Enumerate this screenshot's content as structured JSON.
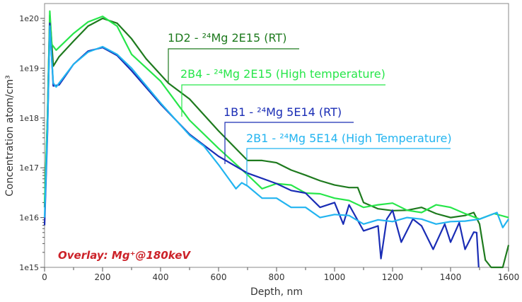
{
  "chart_data": {
    "type": "line",
    "title": "",
    "xlabel": "Depth, nm",
    "ylabel": "Concentration atom/cm³",
    "xlim": [
      0,
      1600
    ],
    "ylim": [
      1000000000000000.0,
      1e+20
    ],
    "yscale": "log",
    "grid": false,
    "x_ticks": [
      "0",
      "200",
      "400",
      "600",
      "800",
      "1000",
      "1200",
      "1400",
      "1600"
    ],
    "y_ticks": [
      "1e15",
      "1e16",
      "1e17",
      "1e18",
      "1e19",
      "1e20"
    ],
    "annotation": "Overlay: Mg⁺@180keV",
    "annotation_color": "#cc2229",
    "series": [
      {
        "name": "1D2 - ²⁴Mg 2E15 (RT)",
        "color": "#1e7a1e",
        "points": [
          [
            0,
            1.6e+16
          ],
          [
            10,
            1e+18
          ],
          [
            18,
            1.15e+20
          ],
          [
            30,
            1.1e+19
          ],
          [
            50,
            1.7e+19
          ],
          [
            100,
            3.5e+19
          ],
          [
            150,
            7e+19
          ],
          [
            200,
            1e+20
          ],
          [
            250,
            8e+19
          ],
          [
            300,
            3.9e+19
          ],
          [
            350,
            1.55e+19
          ],
          [
            427,
            5e+18
          ],
          [
            500,
            2.4e+18
          ],
          [
            600,
            5.5e+17
          ],
          [
            700,
            1.4e+17
          ],
          [
            750,
            1.4e+17
          ],
          [
            800,
            1.26e+17
          ],
          [
            850,
            9e+16
          ],
          [
            900,
            7.1e+16
          ],
          [
            950,
            5.5e+16
          ],
          [
            1000,
            4.5e+16
          ],
          [
            1050,
            4e+16
          ],
          [
            1080,
            4e+16
          ],
          [
            1100,
            2e+16
          ],
          [
            1150,
            1.5e+16
          ],
          [
            1200,
            1.38e+16
          ],
          [
            1250,
            1.4e+16
          ],
          [
            1300,
            1.6e+16
          ],
          [
            1350,
            1.2e+16
          ],
          [
            1400,
            1e+16
          ],
          [
            1450,
            1.1e+16
          ],
          [
            1480,
            1.26e+16
          ],
          [
            1500,
            7400000000000000.0
          ],
          [
            1520,
            1400000000000000.0
          ],
          [
            1540,
            1000000000000000.0
          ],
          [
            1580,
            1000000000000000.0
          ],
          [
            1600,
            2800000000000000.0
          ]
        ]
      },
      {
        "name": "2B4 - ²⁴Mg 2E15 (High temperature)",
        "color": "#27e64a",
        "points": [
          [
            0,
            2e+16
          ],
          [
            10,
            1e+18
          ],
          [
            18,
            1.4e+20
          ],
          [
            25,
            3e+19
          ],
          [
            40,
            2.3e+19
          ],
          [
            100,
            5e+19
          ],
          [
            150,
            8.5e+19
          ],
          [
            200,
            1.1e+20
          ],
          [
            250,
            7e+19
          ],
          [
            300,
            1.9e+19
          ],
          [
            400,
            5.5e+18
          ],
          [
            500,
            9e+17
          ],
          [
            600,
            2.45e+17
          ],
          [
            700,
            7.2e+16
          ],
          [
            750,
            3.8e+16
          ],
          [
            800,
            4.8e+16
          ],
          [
            850,
            4.5e+16
          ],
          [
            900,
            3.1e+16
          ],
          [
            950,
            3e+16
          ],
          [
            1000,
            2.45e+16
          ],
          [
            1050,
            2.2e+16
          ],
          [
            1100,
            1.6e+16
          ],
          [
            1150,
            1.8e+16
          ],
          [
            1200,
            1.95e+16
          ],
          [
            1250,
            1.4e+16
          ],
          [
            1300,
            1.26e+16
          ],
          [
            1350,
            1.8e+16
          ],
          [
            1400,
            1.6e+16
          ],
          [
            1450,
            1.2e+16
          ],
          [
            1500,
            9300000000000000.0
          ],
          [
            1550,
            1.2e+16
          ],
          [
            1600,
            1e+16
          ]
        ]
      },
      {
        "name": "1B1 - ²⁴Mg 5E14 (RT)",
        "color": "#1a2db5",
        "points": [
          [
            0,
            7000000000000000.0
          ],
          [
            10,
            5e+17
          ],
          [
            18,
            8e+19
          ],
          [
            30,
            4.4e+18
          ],
          [
            50,
            4.6e+18
          ],
          [
            100,
            1.2e+19
          ],
          [
            150,
            2.2e+19
          ],
          [
            200,
            2.6e+19
          ],
          [
            250,
            1.8e+19
          ],
          [
            300,
            8.9e+18
          ],
          [
            400,
            1.9e+18
          ],
          [
            500,
            4.7e+17
          ],
          [
            600,
            1.7e+17
          ],
          [
            700,
            7.8e+16
          ],
          [
            800,
            4.8e+16
          ],
          [
            850,
            3.5e+16
          ],
          [
            900,
            3.1e+16
          ],
          [
            950,
            1.6e+16
          ],
          [
            1000,
            2e+16
          ],
          [
            1030,
            7400000000000000.0
          ],
          [
            1050,
            1.8e+16
          ],
          [
            1100,
            5400000000000000.0
          ],
          [
            1150,
            6800000000000000.0
          ],
          [
            1160,
            1500000000000000.0
          ],
          [
            1180,
            9300000000000000.0
          ],
          [
            1200,
            1.4e+16
          ],
          [
            1230,
            3200000000000000.0
          ],
          [
            1270,
            9300000000000000.0
          ],
          [
            1300,
            6800000000000000.0
          ],
          [
            1340,
            2300000000000000.0
          ],
          [
            1380,
            7400000000000000.0
          ],
          [
            1400,
            3200000000000000.0
          ],
          [
            1430,
            7900000000000000.0
          ],
          [
            1450,
            2300000000000000.0
          ],
          [
            1480,
            5100000000000000.0
          ],
          [
            1490,
            5000000000000000.0
          ],
          [
            1497,
            1000000000000000.0
          ]
        ]
      },
      {
        "name": "2B1 - ²⁴Mg 5E14 (High Temperature)",
        "color": "#22b4f0",
        "points": [
          [
            0,
            1e+16
          ],
          [
            10,
            6e+17
          ],
          [
            18,
            7e+19
          ],
          [
            30,
            5e+18
          ],
          [
            40,
            4.2e+18
          ],
          [
            100,
            1.2e+19
          ],
          [
            150,
            2.1e+19
          ],
          [
            200,
            2.7e+19
          ],
          [
            250,
            1.9e+19
          ],
          [
            300,
            1e+19
          ],
          [
            400,
            2e+18
          ],
          [
            500,
            4.5e+17
          ],
          [
            550,
            2.7e+17
          ],
          [
            600,
            1.15e+17
          ],
          [
            660,
            3.8e+16
          ],
          [
            680,
            5e+16
          ],
          [
            700,
            4.3e+16
          ],
          [
            750,
            2.45e+16
          ],
          [
            800,
            2.45e+16
          ],
          [
            850,
            1.6e+16
          ],
          [
            900,
            1.6e+16
          ],
          [
            950,
            1e+16
          ],
          [
            1000,
            1.15e+16
          ],
          [
            1050,
            1.1e+16
          ],
          [
            1100,
            7400000000000000.0
          ],
          [
            1150,
            9000000000000000.0
          ],
          [
            1200,
            8300000000000000.0
          ],
          [
            1250,
            1e+16
          ],
          [
            1300,
            9300000000000000.0
          ],
          [
            1350,
            7400000000000000.0
          ],
          [
            1400,
            8300000000000000.0
          ],
          [
            1450,
            8500000000000000.0
          ],
          [
            1500,
            9300000000000000.0
          ],
          [
            1560,
            1.26e+16
          ],
          [
            1580,
            6300000000000000.0
          ],
          [
            1600,
            9300000000000000.0
          ]
        ]
      }
    ]
  }
}
